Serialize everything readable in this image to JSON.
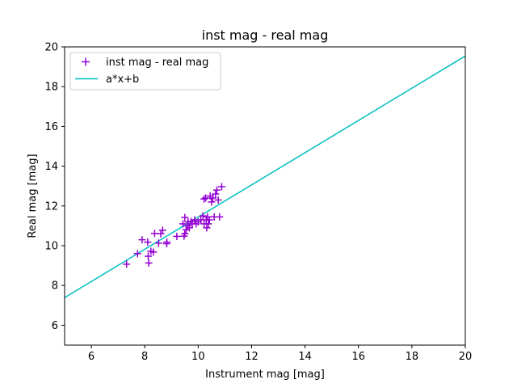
{
  "chart_data": {
    "type": "scatter",
    "title": "inst mag - real mag",
    "xlabel": "Instrument mag [mag]",
    "ylabel": "Real mag [mag]",
    "xlim": [
      5,
      20
    ],
    "ylim": [
      5,
      20
    ],
    "xticks": [
      6,
      8,
      10,
      12,
      14,
      16,
      18,
      20
    ],
    "yticks": [
      6,
      8,
      10,
      12,
      14,
      16,
      18,
      20
    ],
    "grid": false,
    "legend_position": "top-left",
    "series": [
      {
        "name": "inst mag - real mag",
        "kind": "scatter",
        "marker": "plus",
        "color": "#9400d3",
        "points": [
          [
            7.32,
            9.07
          ],
          [
            7.73,
            9.6
          ],
          [
            7.9,
            10.3
          ],
          [
            8.11,
            10.18
          ],
          [
            8.13,
            9.47
          ],
          [
            8.15,
            9.13
          ],
          [
            8.23,
            9.72
          ],
          [
            8.32,
            9.68
          ],
          [
            8.37,
            10.62
          ],
          [
            8.52,
            10.13
          ],
          [
            8.6,
            10.6
          ],
          [
            8.67,
            10.78
          ],
          [
            8.82,
            10.1
          ],
          [
            8.83,
            10.18
          ],
          [
            9.2,
            10.47
          ],
          [
            9.43,
            11.1
          ],
          [
            9.47,
            10.48
          ],
          [
            9.5,
            11.42
          ],
          [
            9.5,
            10.6
          ],
          [
            9.55,
            10.8
          ],
          [
            9.6,
            11.0
          ],
          [
            9.62,
            11.2
          ],
          [
            9.67,
            10.9
          ],
          [
            9.73,
            11.22
          ],
          [
            9.78,
            11.1
          ],
          [
            9.87,
            11.3
          ],
          [
            9.92,
            11.1
          ],
          [
            10.0,
            11.2
          ],
          [
            10.1,
            11.3
          ],
          [
            10.18,
            11.5
          ],
          [
            10.22,
            11.1
          ],
          [
            10.22,
            12.35
          ],
          [
            10.28,
            12.4
          ],
          [
            10.3,
            11.3
          ],
          [
            10.32,
            10.9
          ],
          [
            10.35,
            11.45
          ],
          [
            10.38,
            11.1
          ],
          [
            10.42,
            11.3
          ],
          [
            10.45,
            12.5
          ],
          [
            10.5,
            12.2
          ],
          [
            10.55,
            12.4
          ],
          [
            10.6,
            11.45
          ],
          [
            10.65,
            12.6
          ],
          [
            10.7,
            12.8
          ],
          [
            10.75,
            12.3
          ],
          [
            10.8,
            11.45
          ],
          [
            10.88,
            12.97
          ]
        ]
      },
      {
        "name": "a*x+b",
        "kind": "line",
        "color": "#00bfbf",
        "slope": 0.81,
        "intercept": 3.34
      }
    ]
  }
}
